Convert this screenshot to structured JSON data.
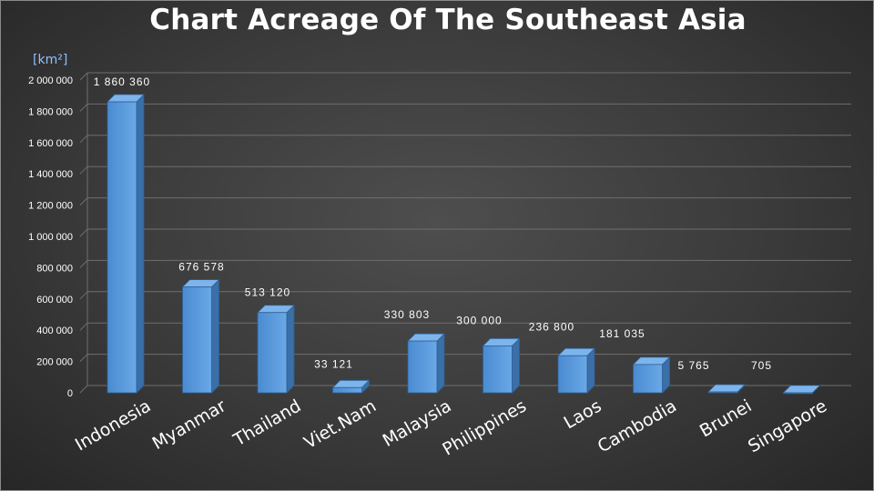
{
  "chart_data": {
    "type": "bar",
    "title": "Chart Acreage Of The Southeast Asia",
    "unit_label": "[km²]",
    "categories": [
      "Indonesia",
      "Myanmar",
      "Thailand",
      "Viet.Nam",
      "Malaysia",
      "Philippines",
      "Laos",
      "Cambodia",
      "Brunei",
      "Singapore"
    ],
    "values": [
      1860360,
      676578,
      513120,
      33121,
      330803,
      300000,
      236800,
      181035,
      5765,
      705
    ],
    "value_labels": [
      "1 860 360",
      "676 578",
      "513 120",
      "33 121",
      "330 803",
      "300 000",
      "236 800",
      "181 035",
      "5 765",
      "705"
    ],
    "y_ticks": [
      "0",
      "200 000",
      "400 000",
      "600 000",
      "800 000",
      "1 000 000",
      "1 200 000",
      "1 400 000",
      "1 600 000",
      "1 800 000",
      "2 000 000"
    ],
    "ylim": [
      0,
      2000000
    ],
    "grid": true,
    "bar_color": "#5b9bd5"
  }
}
